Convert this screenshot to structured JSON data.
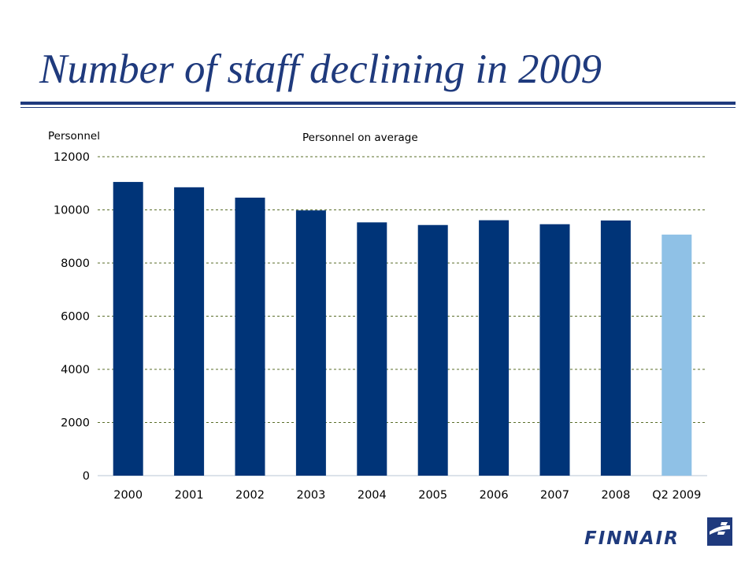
{
  "slide": {
    "title": "Number of staff declining in 2009"
  },
  "brand": {
    "logo_text": "FINNAIR",
    "logo_color": "#1f3a7d",
    "logo_icon": "finnair-f-tail-logo"
  },
  "colors": {
    "title": "#1f3a7d",
    "bar_primary": "#003478",
    "bar_highlight": "#8fc1e6",
    "gridline": "#5a6e2a"
  },
  "chart_data": {
    "type": "bar",
    "title": "Personnel on average",
    "ylabel": "Personnel",
    "xlabel": "",
    "categories": [
      "2000",
      "2001",
      "2002",
      "2003",
      "2004",
      "2005",
      "2006",
      "2007",
      "2008",
      "Q2 2009"
    ],
    "values": [
      11050,
      10850,
      10460,
      9980,
      9530,
      9430,
      9610,
      9460,
      9600,
      9070
    ],
    "ylim": [
      0,
      12000
    ],
    "yticks": [
      "0",
      "2000",
      "4000",
      "6000",
      "8000",
      "10000",
      "12000"
    ],
    "grid": true,
    "highlighted_category": "Q2 2009"
  }
}
